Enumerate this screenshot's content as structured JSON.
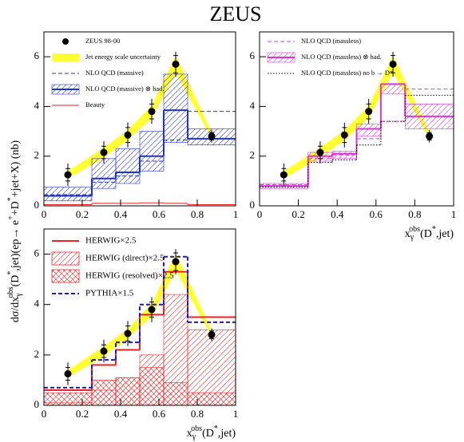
{
  "title": "ZEUS",
  "ylabel": [
    "dσ/dx",
    "γ",
    "obs",
    "(D",
    "*",
    ",jet)(ep→ e",
    "+",
    "+D",
    "*",
    "+jet+X) (nb)"
  ],
  "chart_data": [
    {
      "type": "histogram",
      "bins": [
        0,
        0.25,
        0.375,
        0.5,
        0.625,
        0.75,
        1
      ],
      "xlim": [
        0,
        1
      ],
      "xticks": [
        0,
        0.2,
        0.4,
        0.6,
        0.8,
        1
      ],
      "ylim": [
        0,
        7
      ],
      "yticks": [
        0,
        2,
        4,
        6
      ],
      "legend": "upper left",
      "series": [
        {
          "name": "ZEUS 98-00",
          "style": "points",
          "color": "#000000",
          "x": [
            0.125,
            0.3125,
            0.4375,
            0.5625,
            0.6875,
            0.875
          ],
          "values": [
            1.25,
            2.15,
            2.85,
            3.8,
            5.7,
            2.8
          ],
          "stat_err": [
            0.25,
            0.25,
            0.3,
            0.3,
            0.35,
            0.15
          ],
          "sys_err": [
            0.45,
            0.45,
            0.5,
            0.5,
            0.5,
            0.25
          ]
        },
        {
          "name": "Jet energy scale uncertainty",
          "style": "band",
          "color": "#ffff33",
          "x": [
            0.125,
            0.3125,
            0.4375,
            0.5625,
            0.6875,
            0.875
          ],
          "low": [
            1.1,
            1.95,
            2.65,
            3.55,
            5.35,
            2.7
          ],
          "high": [
            1.4,
            2.35,
            3.05,
            4.05,
            6.05,
            2.95
          ]
        },
        {
          "name": "NLO QCD (massive)",
          "style": "step",
          "dash": "dashed",
          "width": 1,
          "color": "#2233cc",
          "values": [
            0.45,
            0.95,
            1.2,
            1.8,
            2.65,
            3.8
          ]
        },
        {
          "name": "NLO QCD (massive) ⊗ had.",
          "style": "step",
          "dash": "solid",
          "width": 2,
          "color": "#2233cc",
          "values": [
            0.4,
            1.1,
            1.35,
            2.0,
            3.85,
            2.7
          ],
          "low": [
            0.2,
            0.7,
            0.9,
            1.4,
            2.55,
            2.45
          ],
          "high": [
            0.75,
            1.9,
            2.3,
            3.0,
            5.3,
            3.1
          ]
        },
        {
          "name": "Beauty",
          "style": "step",
          "dash": "solid",
          "width": 1,
          "color": "#ee2222",
          "values": [
            0.05,
            0.1,
            0.1,
            0.12,
            0.1,
            0.05
          ]
        }
      ]
    },
    {
      "type": "histogram",
      "bins": [
        0,
        0.25,
        0.375,
        0.5,
        0.625,
        0.75,
        1
      ],
      "xlim": [
        0,
        1
      ],
      "xticks": [
        0,
        0.2,
        0.4,
        0.6,
        0.8,
        1
      ],
      "ylim": [
        0,
        7
      ],
      "yticks": [
        0,
        2,
        4,
        6
      ],
      "legend": "upper left",
      "xlabel": [
        "x",
        "γ",
        "obs",
        "(D",
        "*",
        ",jet)"
      ],
      "series": [
        {
          "style": "points",
          "color": "#000000",
          "x": [
            0.125,
            0.3125,
            0.4375,
            0.5625,
            0.6875,
            0.875
          ],
          "values": [
            1.25,
            2.15,
            2.85,
            3.8,
            5.7,
            2.8
          ],
          "stat_err": [
            0.25,
            0.25,
            0.3,
            0.3,
            0.35,
            0.15
          ],
          "sys_err": [
            0.45,
            0.45,
            0.5,
            0.5,
            0.5,
            0.25
          ]
        },
        {
          "style": "band",
          "color": "#ffff33",
          "x": [
            0.125,
            0.3125,
            0.4375,
            0.5625,
            0.6875,
            0.875
          ],
          "low": [
            1.1,
            1.95,
            2.65,
            3.55,
            5.35,
            2.7
          ],
          "high": [
            1.4,
            2.35,
            3.05,
            4.05,
            6.05,
            2.95
          ]
        },
        {
          "name": "NLO QCD (massless)",
          "style": "step",
          "dash": "dashed",
          "width": 1,
          "color": "#dd33dd",
          "values": [
            0.85,
            1.9,
            2.05,
            2.7,
            3.4,
            4.7
          ]
        },
        {
          "name": "NLO QCD (massless) ⊗ had.",
          "style": "step",
          "dash": "solid",
          "width": 2,
          "color": "#dd33dd",
          "values": [
            0.8,
            2.0,
            2.1,
            3.1,
            4.9,
            3.6
          ],
          "low": [
            0.7,
            1.8,
            1.9,
            2.8,
            4.5,
            3.1
          ],
          "high": [
            0.9,
            2.15,
            2.2,
            3.3,
            4.9,
            4.1
          ]
        },
        {
          "name": "NLO QCD (massless) no b → D*",
          "style": "step",
          "dash": "dotted",
          "width": 1,
          "color": "#000000",
          "values": [
            0.75,
            1.75,
            1.85,
            2.45,
            3.4,
            4.45
          ]
        }
      ]
    },
    {
      "type": "histogram",
      "bins": [
        0,
        0.25,
        0.375,
        0.5,
        0.625,
        0.75,
        1
      ],
      "xlim": [
        0,
        1
      ],
      "xticks": [
        0,
        0.2,
        0.4,
        0.6,
        0.8,
        1
      ],
      "ylim": [
        0,
        7
      ],
      "yticks": [
        0,
        2,
        4,
        6
      ],
      "legend": "upper left",
      "xlabel": [
        "x",
        "γ",
        "obs",
        "(D",
        "*",
        ",jet)"
      ],
      "series": [
        {
          "style": "points",
          "color": "#000000",
          "x": [
            0.125,
            0.3125,
            0.4375,
            0.5625,
            0.6875,
            0.875
          ],
          "values": [
            1.25,
            2.15,
            2.85,
            3.8,
            5.7,
            2.8
          ],
          "stat_err": [
            0.25,
            0.25,
            0.3,
            0.3,
            0.35,
            0.15
          ],
          "sys_err": [
            0.45,
            0.45,
            0.5,
            0.5,
            0.5,
            0.25
          ]
        },
        {
          "style": "band",
          "color": "#ffff33",
          "x": [
            0.125,
            0.3125,
            0.4375,
            0.5625,
            0.6875,
            0.875
          ],
          "low": [
            1.1,
            1.95,
            2.65,
            3.55,
            5.35,
            2.7
          ],
          "high": [
            1.4,
            2.35,
            3.05,
            4.05,
            6.05,
            2.95
          ]
        },
        {
          "name": "HERWIG×2.5",
          "style": "step",
          "dash": "solid",
          "width": 2,
          "color": "#ee2222",
          "values": [
            0.6,
            1.6,
            2.2,
            3.6,
            5.3,
            3.5
          ]
        },
        {
          "name": "HERWIG (direct)×2.5",
          "style": "hatch",
          "pattern": "single",
          "color": "#ee2222",
          "values": [
            0.1,
            0.6,
            1.1,
            2.0,
            4.4,
            3.0
          ]
        },
        {
          "name": "HERWIG (resolved)×2.5",
          "style": "hatch",
          "pattern": "cross",
          "color": "#ee2222",
          "values": [
            0.5,
            1.0,
            1.1,
            1.5,
            0.9,
            0.5
          ]
        },
        {
          "name": "PYTHIA×1.5",
          "style": "step",
          "dash": "dashed",
          "width": 2,
          "color": "#1a1acc",
          "values": [
            0.7,
            1.8,
            2.5,
            4.0,
            5.9,
            3.3
          ]
        }
      ]
    }
  ]
}
